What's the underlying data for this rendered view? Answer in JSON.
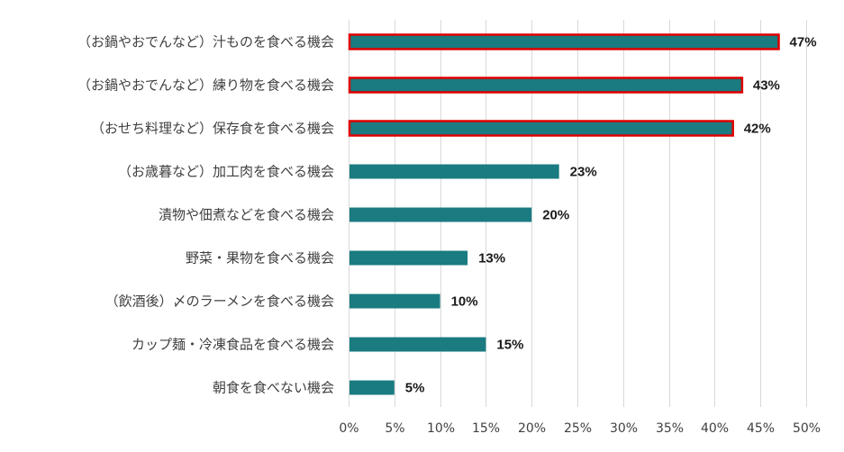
{
  "chart_data": {
    "type": "bar",
    "orientation": "horizontal",
    "categories": [
      "（お鍋やおでんなど）汁ものを食べる機会",
      "（お鍋やおでんなど）練り物を食べる機会",
      "（おせち料理など）保存食を食べる機会",
      "（お歳暮など）加工肉を食べる機会",
      "漬物や佃煮などを食べる機会",
      "野菜・果物を食べる機会",
      "（飲酒後）〆のラーメンを食べる機会",
      "カップ麺・冷凍食品を食べる機会",
      "朝食を食べない機会"
    ],
    "values": [
      47,
      43,
      42,
      23,
      20,
      13,
      10,
      15,
      5
    ],
    "data_labels": [
      "47%",
      "43%",
      "42%",
      "23%",
      "20%",
      "13%",
      "10%",
      "15%",
      "5%"
    ],
    "highlighted": [
      true,
      true,
      true,
      false,
      false,
      false,
      false,
      false,
      false
    ],
    "xlim": [
      0,
      50
    ],
    "xticks": [
      "0%",
      "5%",
      "10%",
      "15%",
      "20%",
      "25%",
      "30%",
      "35%",
      "40%",
      "45%",
      "50%"
    ],
    "grid": true,
    "colors": {
      "bar": "#1a7b80",
      "highlight_border": "#e00000"
    }
  }
}
